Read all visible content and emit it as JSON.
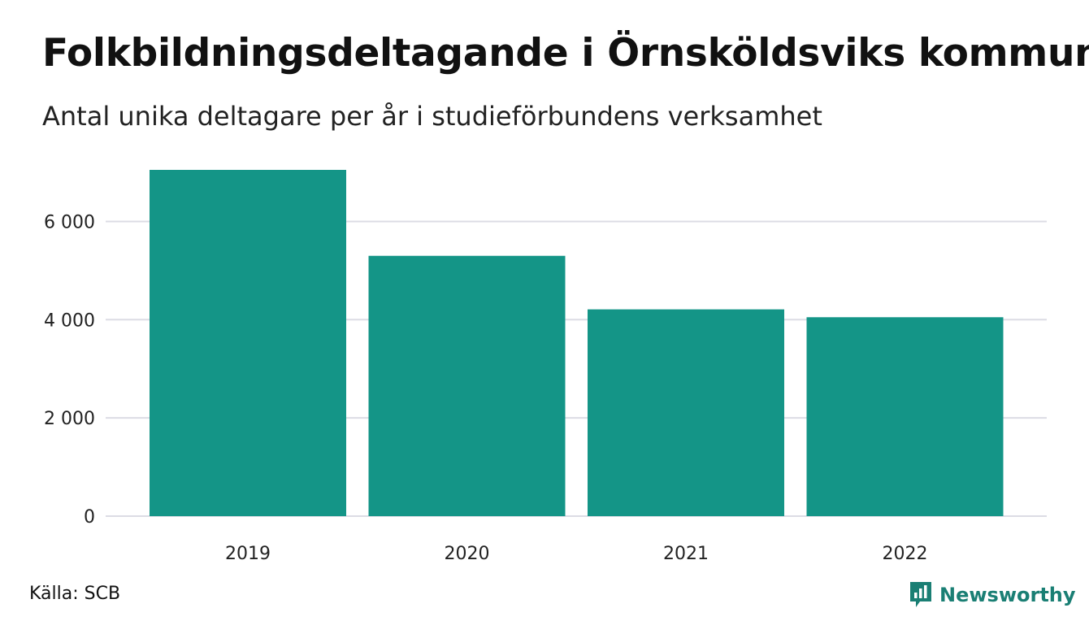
{
  "header": {
    "title": "Folkbildningsdeltagande i Örnsköldsviks kommun",
    "subtitle": "Antal unika deltagare per år i studieförbundens verksamhet"
  },
  "footer": {
    "source": "Källa: SCB",
    "brand": "Newsworthy",
    "brand_icon": "bar-chart-speech-bubble-icon"
  },
  "colors": {
    "bar": "#149587",
    "grid": "#dcdce4",
    "brand": "#1a7f74"
  },
  "chart_data": {
    "type": "bar",
    "categories": [
      "2019",
      "2020",
      "2021",
      "2022"
    ],
    "values": [
      7050,
      5300,
      4210,
      4050
    ],
    "title": "Folkbildningsdeltagande i Örnsköldsviks kommun",
    "subtitle": "Antal unika deltagare per år i studieförbundens verksamhet",
    "xlabel": "",
    "ylabel": "",
    "ylim": [
      0,
      7050
    ],
    "yticks": [
      0,
      2000,
      4000,
      6000
    ],
    "ytick_labels": [
      "0",
      "2 000",
      "4 000",
      "6 000"
    ],
    "grid": true,
    "legend": "none"
  }
}
